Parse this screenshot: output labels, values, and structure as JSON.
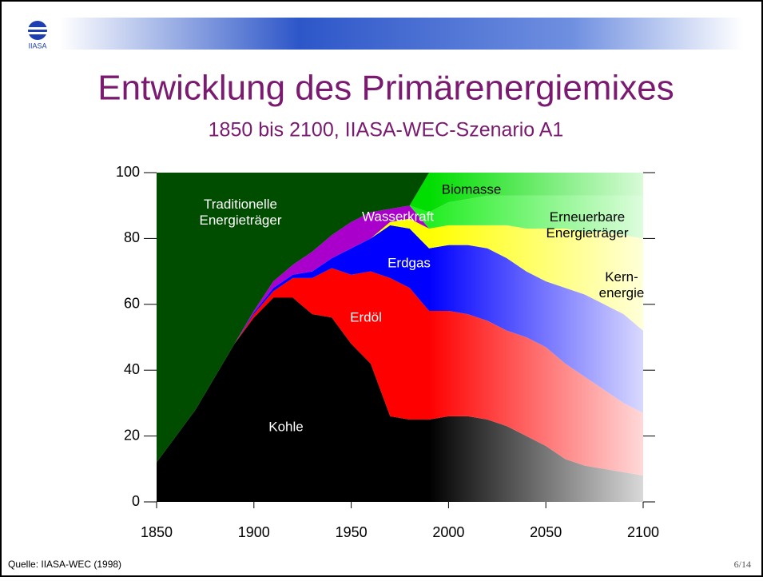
{
  "header": {
    "title": "Entwicklung des Primärenergiemixes",
    "subtitle": "1850 bis 2100, IIASA-WEC-Szenario A1",
    "logo_text": "IIASA"
  },
  "footer": {
    "source": "Quelle: IIASA-WEC (1998)",
    "page": "6/14"
  },
  "chart_data": {
    "type": "stacked_area",
    "x": [
      1850,
      1860,
      1870,
      1880,
      1890,
      1900,
      1910,
      1920,
      1930,
      1940,
      1950,
      1960,
      1970,
      1980,
      1990,
      2000,
      2010,
      2020,
      2030,
      2040,
      2050,
      2060,
      2070,
      2080,
      2090,
      2100
    ],
    "xlim": [
      1850,
      2100
    ],
    "xticks": [
      1850,
      1900,
      1950,
      2000,
      2050,
      2100
    ],
    "ylim": [
      0,
      100
    ],
    "yticks": [
      0,
      20,
      40,
      60,
      80,
      100
    ],
    "series": [
      {
        "name": "Kohle",
        "color": "#000000",
        "values": [
          12,
          20,
          28,
          38,
          48,
          56,
          62,
          62,
          57,
          56,
          48,
          42,
          26,
          25,
          25,
          26,
          26,
          25,
          23,
          20,
          17,
          13,
          11,
          10,
          9,
          8
        ]
      },
      {
        "name": "Erdöl",
        "color": "#ff0000",
        "values": [
          0,
          0,
          0,
          0,
          0,
          1,
          2,
          6,
          11,
          15,
          21,
          28,
          42,
          40,
          33,
          32,
          31,
          30,
          29,
          30,
          30,
          29,
          27,
          24,
          21,
          19
        ]
      },
      {
        "name": "Erdgas",
        "color": "#0000ff",
        "values": [
          0,
          0,
          0,
          0,
          0,
          0.5,
          1,
          1,
          2,
          3,
          8,
          10,
          16,
          18,
          19,
          20,
          21,
          22,
          22,
          20,
          20,
          23,
          25,
          26,
          27,
          25
        ]
      },
      {
        "name": "Kern-\nenergie",
        "color": "#ffff00",
        "values": [
          0,
          0,
          0,
          0,
          0,
          0,
          0,
          0,
          0,
          0,
          0,
          0,
          1,
          3,
          6,
          6,
          6,
          7,
          10,
          13,
          16,
          18,
          19,
          22,
          24,
          28
        ]
      },
      {
        "name": "Wasserkraft",
        "color": "#aa00cc",
        "values": [
          0,
          0,
          0,
          0,
          0,
          0.5,
          2,
          3,
          6,
          7,
          8,
          8,
          4,
          4,
          0,
          0,
          0,
          0,
          0,
          0,
          0,
          0,
          0,
          0,
          0,
          0
        ]
      },
      {
        "name": "Erneuerbare\nEnergieträger",
        "color": "#22ee22",
        "values": [
          0,
          0,
          0,
          0,
          0,
          0,
          0,
          0,
          0,
          0,
          0,
          0,
          0,
          0,
          5,
          7,
          8,
          9,
          9,
          10,
          10,
          10,
          11,
          11,
          12,
          13
        ]
      },
      {
        "name": "Biomasse",
        "color": "#00dd00",
        "values": [
          0,
          0,
          0,
          0,
          0,
          0,
          0,
          0,
          0,
          0,
          0,
          0,
          0,
          0,
          12,
          9,
          8,
          7,
          7,
          7,
          7,
          7,
          7,
          7,
          7,
          7
        ]
      },
      {
        "name": "Traditionelle\nEnergieträger",
        "color": "#004d00",
        "values": [
          88,
          80,
          72,
          62,
          52,
          42,
          33,
          28,
          24,
          19,
          15,
          12,
          11,
          10,
          0,
          0,
          0,
          0,
          0,
          0,
          0,
          0,
          0,
          0,
          0,
          0
        ]
      }
    ]
  }
}
